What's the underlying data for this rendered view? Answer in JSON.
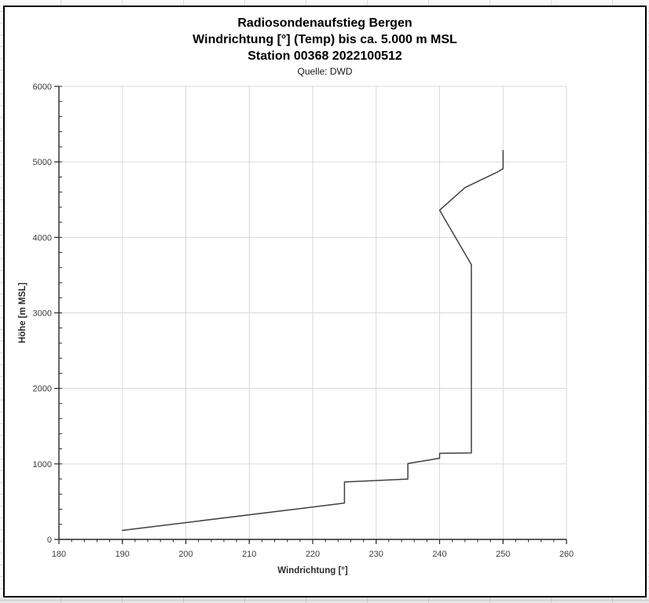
{
  "chart_data": {
    "type": "line",
    "title": "Radiosondenaufstieg Bergen",
    "subtitle": "Windrichtung [°] (Temp) bis ca. 5.000 m MSL",
    "station": "Station 00368 2022100512",
    "source": "Quelle: DWD",
    "xlabel": "Windrichtung [°]",
    "ylabel": "Höhe [m MSL]",
    "xlim": [
      180,
      260
    ],
    "ylim": [
      0,
      6000
    ],
    "x_major_ticks": [
      180,
      190,
      200,
      210,
      220,
      230,
      240,
      250,
      260
    ],
    "x_minor_step": 2,
    "y_major_ticks": [
      0,
      1000,
      2000,
      3000,
      4000,
      5000,
      6000
    ],
    "y_minor_step": 200,
    "grid": "major-both",
    "legend": "none",
    "markers": "none",
    "series": [
      {
        "name": "Windrichtung",
        "x_unit": "Grad",
        "y_unit": "m MSL",
        "points": [
          [
            190,
            120
          ],
          [
            225,
            480
          ],
          [
            225,
            760
          ],
          [
            235,
            800
          ],
          [
            235,
            1005
          ],
          [
            240,
            1075
          ],
          [
            240,
            1140
          ],
          [
            245,
            1145
          ],
          [
            245,
            3640
          ],
          [
            240,
            4360
          ],
          [
            244,
            4660
          ],
          [
            246.5,
            4760
          ],
          [
            249,
            4860
          ],
          [
            250,
            4910
          ],
          [
            250,
            5150
          ]
        ]
      }
    ],
    "colors": {
      "line": "#404040",
      "grid": "#d9d9d9",
      "axis": "#262626",
      "tick_text": "#3d3d3d",
      "title_text": "#000000"
    }
  }
}
